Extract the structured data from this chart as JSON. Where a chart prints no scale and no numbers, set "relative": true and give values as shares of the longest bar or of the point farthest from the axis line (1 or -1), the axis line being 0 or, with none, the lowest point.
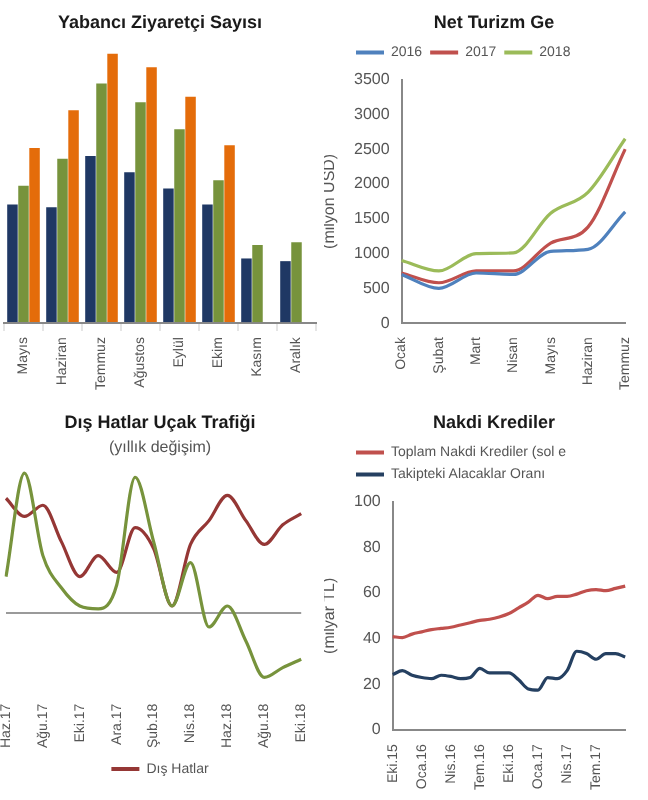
{
  "chart_data": [
    {
      "type": "bar",
      "title": "Yabancı Ziyaretçi Sayısı",
      "relative": true,
      "categories": [
        "Mayıs",
        "Haziran",
        "Temmuz",
        "Ağustos",
        "Eylül",
        "Ekim",
        "Kasım",
        "Aralık"
      ],
      "series": [
        {
          "color": "#1f3864",
          "values": [
            0.44,
            0.43,
            0.62,
            0.56,
            0.5,
            0.44,
            0.24,
            0.23
          ]
        },
        {
          "color": "#77933c",
          "values": [
            0.51,
            0.61,
            0.89,
            0.82,
            0.72,
            0.53,
            0.29,
            0.3
          ]
        },
        {
          "color": "#e46c0a",
          "values": [
            0.65,
            0.79,
            1,
            0.95,
            0.84,
            0.66,
            null,
            null
          ]
        }
      ]
    },
    {
      "type": "line",
      "title": "Net Turizm Ge",
      "ylabel": "(milyon USD)",
      "categories": [
        "Ocak",
        "Şubat",
        "Mart",
        "Nisan",
        "Mayıs",
        "Haziran",
        "Temmuz"
      ],
      "ylim": [
        0,
        3500
      ],
      "yticks": [
        0,
        500,
        1000,
        1500,
        2000,
        2500,
        3000,
        3500
      ],
      "legend": "top left",
      "series": [
        {
          "name": "2016",
          "color": "#4f81bd",
          "values": [
            700,
            500,
            720,
            700,
            1030,
            1060,
            1600
          ]
        },
        {
          "name": "2017",
          "color": "#c0504d",
          "values": [
            720,
            580,
            750,
            750,
            1150,
            1380,
            2500
          ]
        },
        {
          "name": "2018",
          "color": "#9bbb59",
          "values": [
            900,
            750,
            1000,
            1010,
            1580,
            1880,
            2650
          ]
        }
      ]
    },
    {
      "type": "line",
      "title": "Dış Hatlar Uçak Trafiği",
      "subtitle": "(yıllık değişim)",
      "relative": true,
      "legend": "bottom",
      "categories": [
        "Haz.17",
        null,
        "Ağu.17",
        null,
        "Eki.17",
        null,
        "Ara.17",
        null,
        "Şub.18",
        null,
        "Nis.18",
        null,
        "Haz.18",
        null,
        "Ağu.18",
        null,
        "Eki.18"
      ],
      "series": [
        {
          "color": "#77933c",
          "values": [
            0.26,
            1,
            0.41,
            0.18,
            0.05,
            0.03,
            0.2,
            0.97,
            0.51,
            0.05,
            0.36,
            -0.1,
            0.05,
            -0.2,
            -0.46,
            -0.39,
            -0.33
          ]
        },
        {
          "name": "Dış Hatlar",
          "color": "#953735",
          "values": [
            0.82,
            0.69,
            0.77,
            0.51,
            0.26,
            0.41,
            0.29,
            0.61,
            0.46,
            0.05,
            0.49,
            0.66,
            0.84,
            0.66,
            0.49,
            0.63,
            0.71
          ]
        }
      ]
    },
    {
      "type": "line",
      "title": "Nakdi Krediler",
      "ylabel": "(milyar TL)",
      "ylim": [
        0,
        100
      ],
      "yticks": [
        0,
        20,
        40,
        60,
        80,
        100
      ],
      "legend": "top left",
      "categories": [
        "Eki.15",
        null,
        null,
        "Oca.16",
        null,
        null,
        "Nis.16",
        null,
        null,
        "Tem.16",
        null,
        null,
        "Eki.16",
        null,
        null,
        "Oca.17",
        null,
        null,
        "Nis.17",
        null,
        null,
        "Tem.17",
        null,
        null,
        null
      ],
      "series": [
        {
          "name": "Toplam Nakdi Krediler (sol e",
          "color": "#c0504d",
          "values": [
            40.9,
            40.5,
            42,
            43,
            44,
            44.5,
            45,
            46,
            47,
            48,
            48.5,
            49.5,
            51,
            53.5,
            56,
            59,
            57.5,
            58.5,
            58.5,
            59.5,
            61,
            61.5,
            61,
            62,
            63
          ]
        },
        {
          "name": "Takipteki Alacaklar Oranı",
          "color": "#254061",
          "values": [
            24.3,
            26,
            24,
            23,
            22.5,
            24,
            23.5,
            22.5,
            23,
            27,
            25,
            25,
            25,
            22,
            18,
            17.5,
            23,
            22.5,
            26,
            34.5,
            33.5,
            31,
            33.5,
            33.5,
            32
          ]
        }
      ]
    }
  ]
}
